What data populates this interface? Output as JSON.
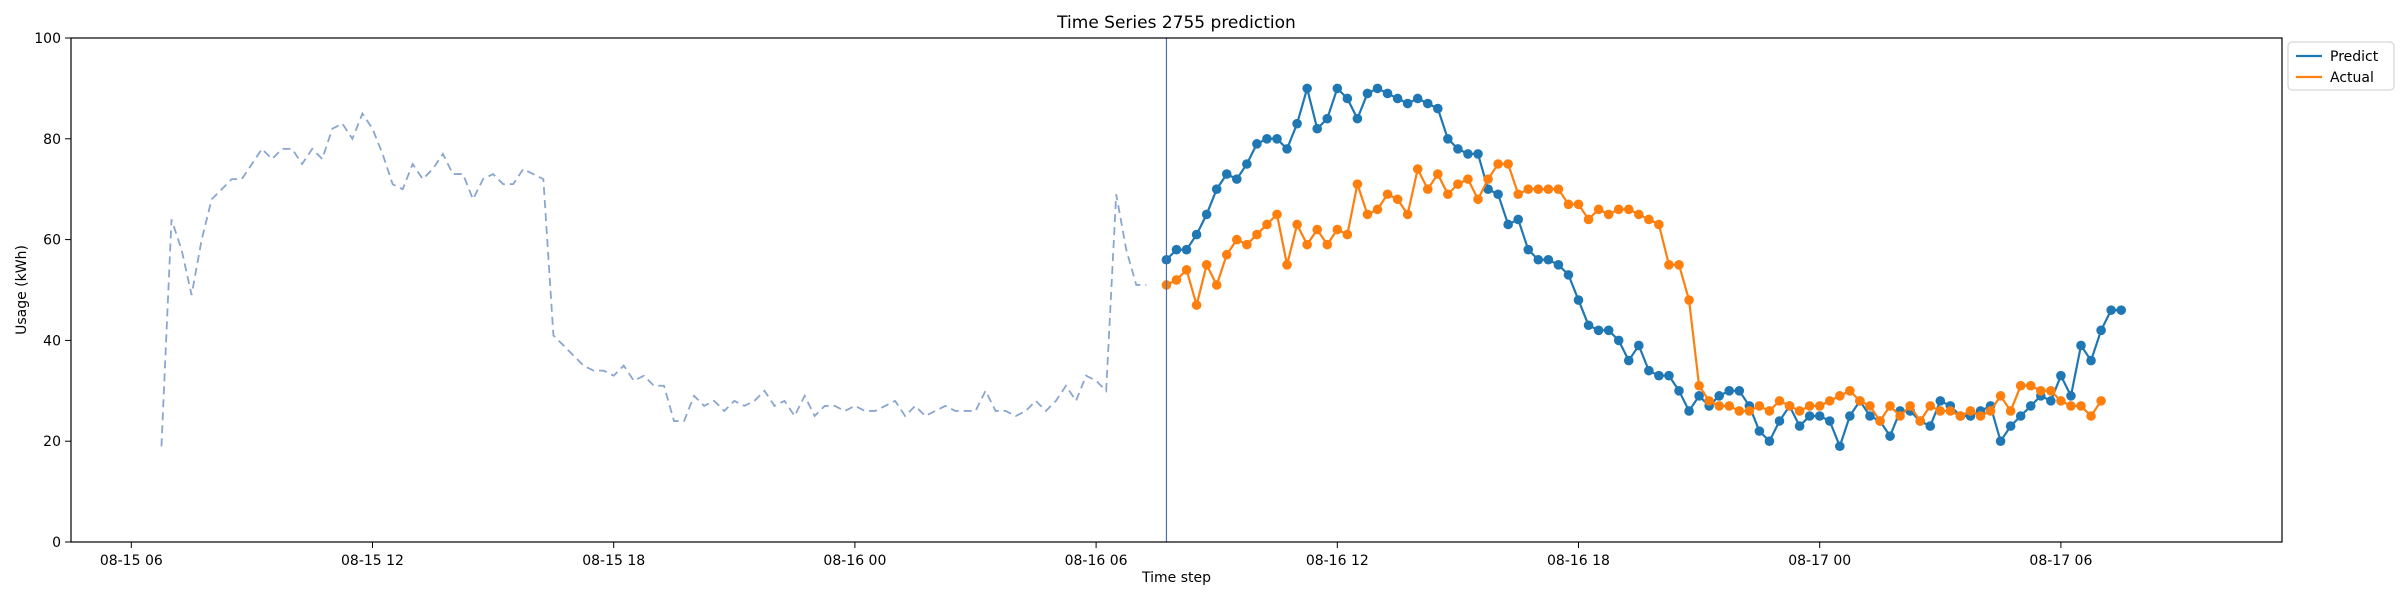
{
  "chart_data": {
    "type": "line",
    "title": "Time Series 2755 prediction",
    "xlabel": "Time step",
    "ylabel": "Usage (kWh)",
    "ylim": [
      0,
      100
    ],
    "yticks": [
      0,
      20,
      40,
      60,
      80,
      100
    ],
    "xlim": [
      "2024-08-15 04:30",
      "2024-08-17 11:30"
    ],
    "xticks": [
      {
        "t": "2024-08-15 06:00",
        "label": "08-15 06"
      },
      {
        "t": "2024-08-15 12:00",
        "label": "08-15 12"
      },
      {
        "t": "2024-08-15 18:00",
        "label": "08-15 18"
      },
      {
        "t": "2024-08-16 00:00",
        "label": "08-16 00"
      },
      {
        "t": "2024-08-16 06:00",
        "label": "08-16 06"
      },
      {
        "t": "2024-08-16 12:00",
        "label": "08-16 12"
      },
      {
        "t": "2024-08-16 18:00",
        "label": "08-16 18"
      },
      {
        "t": "2024-08-17 00:00",
        "label": "08-17 00"
      },
      {
        "t": "2024-08-17 06:00",
        "label": "08-17 06"
      }
    ],
    "grid": false,
    "legend_position": "outside-top-right",
    "forecast_start": "2024-08-16 07:45",
    "history": {
      "start": "2024-08-15 06:45",
      "step_minutes": 15,
      "color": "#8aa6cf",
      "style": "dashed",
      "values": [
        19,
        64,
        58,
        49,
        60,
        68,
        70,
        72,
        72,
        75,
        78,
        76,
        78,
        78,
        75,
        78,
        76,
        82,
        83,
        80,
        85,
        82,
        77,
        71,
        70,
        75,
        72,
        74,
        77,
        73,
        73,
        68,
        72,
        73,
        71,
        71,
        74,
        73,
        72,
        41,
        39,
        37,
        35,
        34,
        34,
        33,
        35,
        32,
        33,
        31,
        31,
        24,
        24,
        29,
        27,
        28,
        26,
        28,
        27,
        28,
        30,
        27,
        28,
        25,
        29,
        25,
        27,
        27,
        26,
        27,
        26,
        26,
        27,
        28,
        25,
        27,
        25,
        26,
        27,
        26,
        26,
        26,
        30,
        26,
        26,
        25,
        26,
        28,
        26,
        28,
        31,
        28,
        33,
        32,
        30,
        69,
        58,
        51,
        51
      ]
    },
    "series": [
      {
        "name": "Predict",
        "color": "#1f77b4",
        "start": "2024-08-16 07:45",
        "step_minutes": 15,
        "values": [
          56,
          58,
          58,
          61,
          65,
          70,
          73,
          72,
          75,
          79,
          80,
          80,
          78,
          83,
          90,
          82,
          84,
          90,
          88,
          84,
          89,
          90,
          89,
          88,
          87,
          88,
          87,
          86,
          80,
          78,
          77,
          77,
          70,
          69,
          63,
          64,
          58,
          56,
          56,
          55,
          53,
          48,
          43,
          42,
          42,
          40,
          36,
          39,
          34,
          33,
          33,
          30,
          26,
          29,
          27,
          29,
          30,
          30,
          27,
          22,
          20,
          24,
          27,
          23,
          25,
          25,
          24,
          19,
          25,
          28,
          25,
          24,
          21,
          26,
          26,
          24,
          23,
          28,
          27,
          25,
          25,
          26,
          27,
          20,
          23,
          25,
          27,
          29,
          28,
          33,
          29,
          39,
          36,
          42,
          46,
          46
        ]
      },
      {
        "name": "Actual",
        "color": "#ff7f0e",
        "start": "2024-08-16 07:45",
        "step_minutes": 15,
        "values": [
          51,
          52,
          54,
          47,
          55,
          51,
          57,
          60,
          59,
          61,
          63,
          65,
          55,
          63,
          59,
          62,
          59,
          62,
          61,
          71,
          65,
          66,
          69,
          68,
          65,
          74,
          70,
          73,
          69,
          71,
          72,
          68,
          72,
          75,
          75,
          69,
          70,
          70,
          70,
          70,
          67,
          67,
          64,
          66,
          65,
          66,
          66,
          65,
          64,
          63,
          55,
          55,
          48,
          31,
          28,
          27,
          27,
          26,
          26,
          27,
          26,
          28,
          27,
          26,
          27,
          27,
          28,
          29,
          30,
          28,
          27,
          24,
          27,
          25,
          27,
          24,
          27,
          26,
          26,
          25,
          26,
          25,
          26,
          29,
          26,
          31,
          31,
          30,
          30,
          28,
          27,
          27,
          25,
          28
        ]
      }
    ]
  }
}
